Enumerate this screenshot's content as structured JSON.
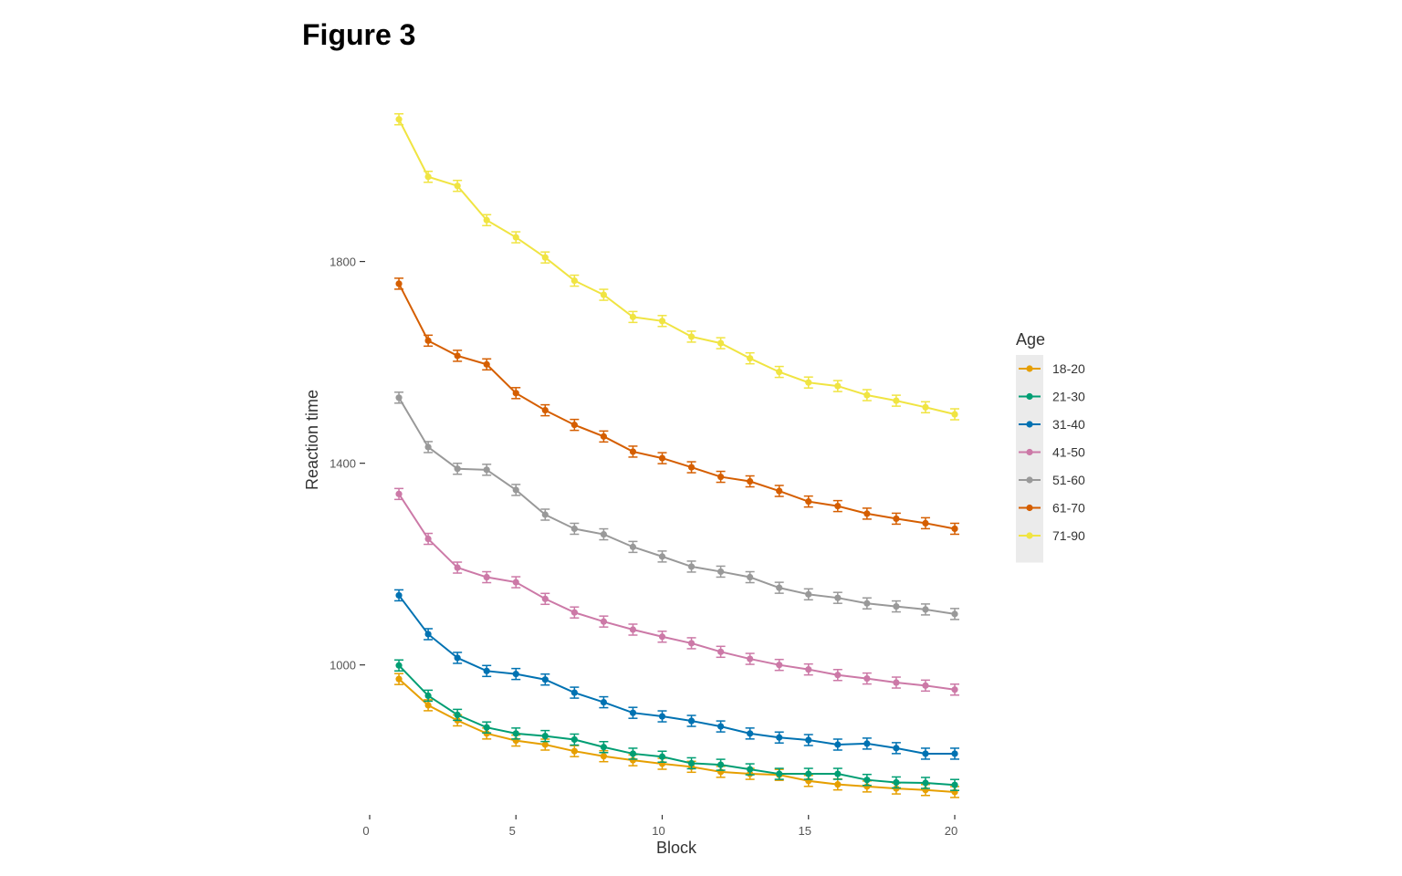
{
  "figure_title": "Figure 3",
  "chart_data": {
    "type": "line",
    "title": "",
    "xlabel": "Block",
    "ylabel": "Reaction time",
    "xlim": [
      0,
      20.6
    ],
    "ylim": [
      690,
      2210
    ],
    "x_ticks": [
      0,
      5,
      10,
      15,
      20
    ],
    "y_ticks": [
      1000,
      1400,
      1800
    ],
    "grid": false,
    "legend": {
      "title": "Age",
      "position": "right"
    },
    "x": [
      1,
      2,
      3,
      4,
      5,
      6,
      7,
      8,
      9,
      10,
      11,
      12,
      13,
      14,
      15,
      16,
      17,
      18,
      19,
      20
    ],
    "series": [
      {
        "name": "18-20",
        "color": "#E69F00",
        "values": [
          972,
          920,
          890,
          864,
          850,
          842,
          829,
          819,
          811,
          804,
          798,
          788,
          784,
          782,
          770,
          763,
          759,
          755,
          752,
          748
        ]
      },
      {
        "name": "21-30",
        "color": "#009E73",
        "values": [
          999,
          939,
          901,
          876,
          864,
          859,
          852,
          837,
          824,
          818,
          805,
          802,
          793,
          784,
          784,
          784,
          772,
          767,
          766,
          762
        ]
      },
      {
        "name": "31-40",
        "color": "#0072B2",
        "values": [
          1138,
          1061,
          1014,
          988,
          982,
          971,
          945,
          926,
          905,
          898,
          889,
          878,
          864,
          856,
          851,
          842,
          844,
          835,
          824,
          824
        ]
      },
      {
        "name": "41-50",
        "color": "#CC79A7",
        "values": [
          1339,
          1250,
          1193,
          1174,
          1164,
          1131,
          1104,
          1086,
          1070,
          1056,
          1043,
          1026,
          1012,
          1000,
          991,
          980,
          973,
          965,
          959,
          951
        ]
      },
      {
        "name": "51-60",
        "color": "#999999",
        "values": [
          1530,
          1432,
          1389,
          1387,
          1347,
          1298,
          1270,
          1259,
          1234,
          1215,
          1195,
          1185,
          1174,
          1153,
          1140,
          1133,
          1122,
          1116,
          1110,
          1101
        ]
      },
      {
        "name": "61-70",
        "color": "#D55E00",
        "values": [
          1756,
          1643,
          1613,
          1596,
          1539,
          1505,
          1476,
          1453,
          1423,
          1410,
          1392,
          1373,
          1364,
          1345,
          1324,
          1315,
          1300,
          1290,
          1281,
          1270
        ]
      },
      {
        "name": "71-90",
        "color": "#F0E442",
        "values": [
          2082,
          1968,
          1950,
          1882,
          1848,
          1808,
          1762,
          1734,
          1690,
          1682,
          1651,
          1638,
          1608,
          1581,
          1560,
          1553,
          1535,
          1524,
          1511,
          1497
        ]
      }
    ]
  }
}
